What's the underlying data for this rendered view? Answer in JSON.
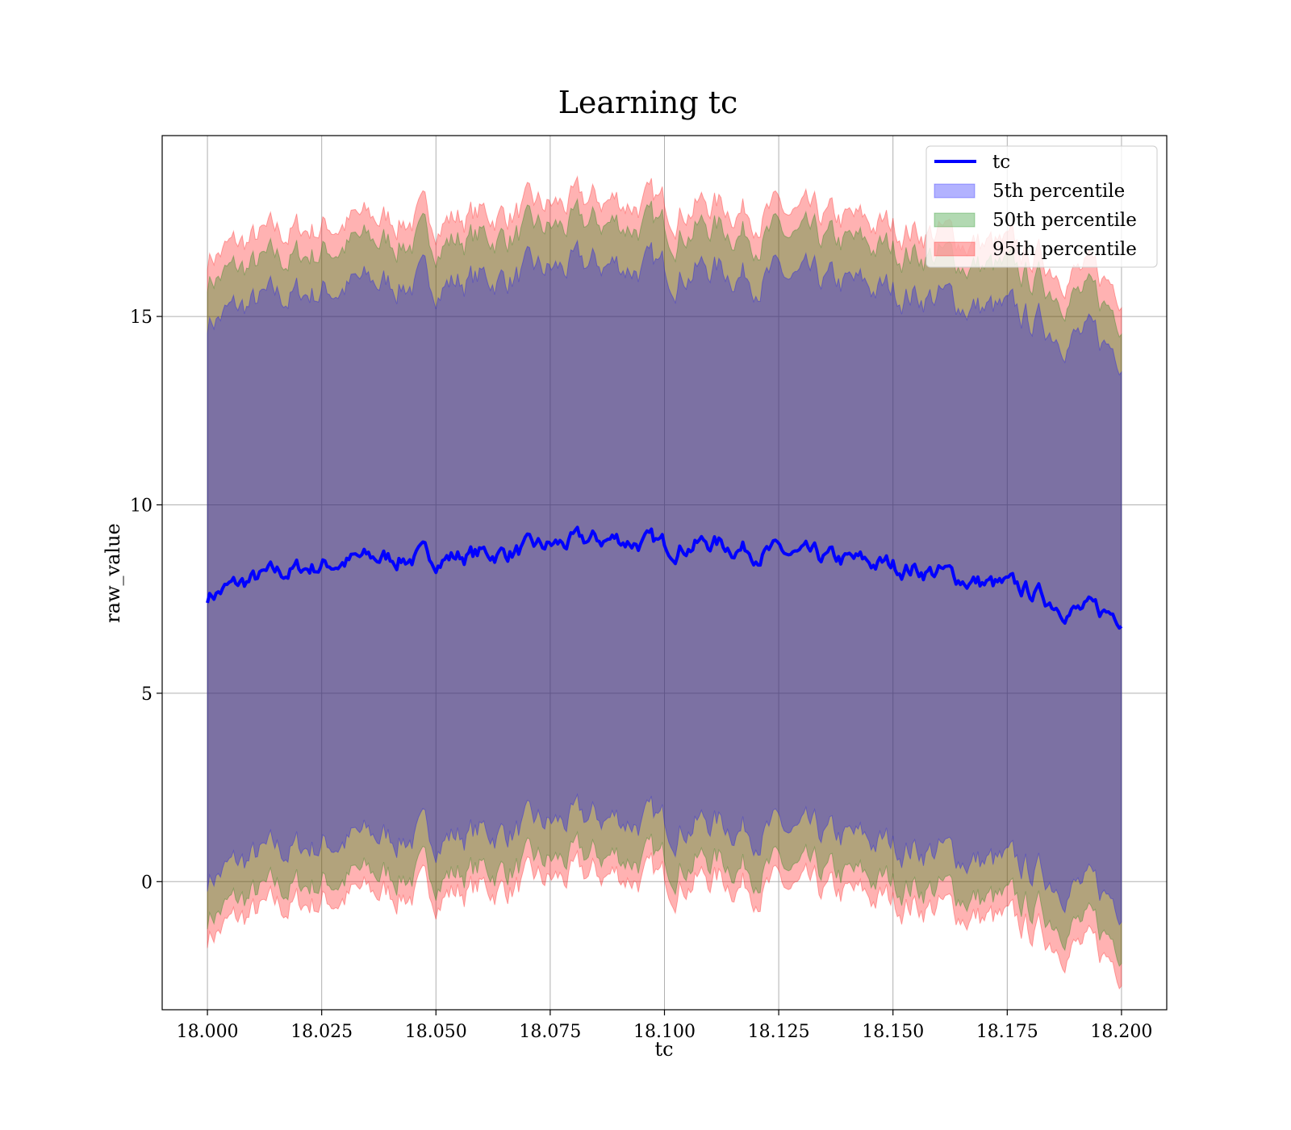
{
  "chart_data": {
    "type": "area",
    "title": "Learning tc",
    "xlabel": "tc",
    "ylabel": "raw_value",
    "xlim": [
      17.9901,
      18.2099
    ],
    "ylim": [
      -3.4,
      19.8
    ],
    "x_ticks": [
      18.0,
      18.025,
      18.05,
      18.075,
      18.1,
      18.125,
      18.15,
      18.175,
      18.2
    ],
    "x_tick_labels": [
      "18.000",
      "18.025",
      "18.050",
      "18.075",
      "18.100",
      "18.125",
      "18.150",
      "18.175",
      "18.200"
    ],
    "y_ticks": [
      0,
      5,
      10,
      15
    ],
    "y_tick_labels": [
      "0",
      "5",
      "10",
      "15"
    ],
    "grid": true,
    "legend_position": "top-right",
    "line": {
      "name": "tc",
      "color": "#0000ff",
      "x": [
        18.0,
        18.01,
        18.02,
        18.03,
        18.04,
        18.05,
        18.06,
        18.07,
        18.08,
        18.09,
        18.1,
        18.11,
        18.12,
        18.13,
        18.14,
        18.15,
        18.16,
        18.17,
        18.18,
        18.19,
        18.2
      ],
      "y": [
        7.6,
        8.0,
        8.3,
        8.5,
        8.6,
        8.6,
        8.7,
        8.8,
        9.0,
        9.1,
        8.9,
        9.0,
        8.8,
        8.6,
        8.5,
        8.4,
        8.2,
        7.9,
        7.7,
        7.2,
        7.1
      ]
    },
    "bands": [
      {
        "name": "5th percentile",
        "color": "#0000ff",
        "lower": [
          0.1,
          0.6,
          0.9,
          1.1,
          1.2,
          1.2,
          1.3,
          1.4,
          1.6,
          1.7,
          1.5,
          1.6,
          1.4,
          1.2,
          1.1,
          1.0,
          0.8,
          0.5,
          0.3,
          -0.1,
          -0.5
        ],
        "upper": [
          14.9,
          15.3,
          15.6,
          15.8,
          15.9,
          15.9,
          16.0,
          16.1,
          16.3,
          16.4,
          16.2,
          16.3,
          16.1,
          15.9,
          15.8,
          15.7,
          15.5,
          15.2,
          14.9,
          14.5,
          14.1
        ]
      },
      {
        "name": "50th percentile",
        "color": "#008000",
        "lower": [
          -0.9,
          -0.4,
          -0.1,
          0.1,
          0.2,
          0.2,
          0.3,
          0.4,
          0.6,
          0.7,
          0.5,
          0.6,
          0.4,
          0.2,
          0.1,
          0.0,
          -0.2,
          -0.5,
          -0.7,
          -1.1,
          -1.6
        ],
        "upper": [
          16.0,
          16.3,
          16.6,
          16.9,
          17.0,
          17.0,
          17.1,
          17.2,
          17.4,
          17.5,
          17.3,
          17.4,
          17.2,
          17.0,
          16.9,
          16.8,
          16.6,
          16.3,
          16.0,
          15.6,
          15.1
        ]
      },
      {
        "name": "95th percentile",
        "color": "#ff0000",
        "lower": [
          -1.4,
          -0.9,
          -0.6,
          -0.4,
          -0.3,
          -0.3,
          -0.2,
          -0.1,
          0.1,
          0.2,
          0.0,
          0.1,
          -0.1,
          -0.3,
          -0.4,
          -0.5,
          -0.7,
          -1.0,
          -1.3,
          -1.7,
          -2.2
        ],
        "upper": [
          16.6,
          17.0,
          17.3,
          17.5,
          17.6,
          17.6,
          17.7,
          17.8,
          18.0,
          18.1,
          17.9,
          18.0,
          17.8,
          17.6,
          17.5,
          17.4,
          17.2,
          16.9,
          16.6,
          16.2,
          15.8
        ]
      }
    ]
  }
}
